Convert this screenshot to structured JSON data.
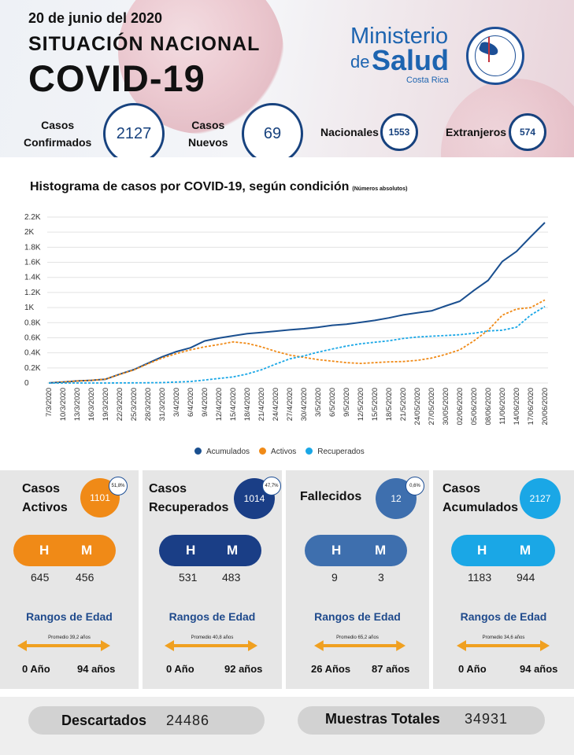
{
  "header": {
    "date": "20 de junio del 2020",
    "situacion": "SITUACIÓN NACIONAL",
    "covid": "COVID-19",
    "ministerio": "Ministerio",
    "de": "de",
    "salud": "Salud",
    "costa_rica": "Costa Rica"
  },
  "stats": {
    "confirmados_label_1": "Casos",
    "confirmados_label_2": "Confirmados",
    "confirmados_value": "2127",
    "nuevos_label_1": "Casos",
    "nuevos_label_2": "Nuevos",
    "nuevos_value": "69",
    "nacionales_label": "Nacionales",
    "nacionales_value": "1553",
    "extranjeros_label": "Extranjeros",
    "extranjeros_value": "574"
  },
  "chart_title": "Histograma de casos por COVID-19, según condición",
  "chart_subtitle": "(Números absolutos)",
  "chart_data": {
    "type": "line",
    "title": "Histograma de casos por COVID-19, según condición",
    "subtitle": "(Números absolutos)",
    "xlabel": "",
    "ylabel": "",
    "ylim": [
      0,
      2200
    ],
    "y_ticks": [
      0,
      200,
      400,
      600,
      800,
      1000,
      1200,
      1400,
      1600,
      1800,
      2000,
      2200
    ],
    "y_tick_labels": [
      "0",
      "0.2K",
      "0.4K",
      "0.6K",
      "0.8K",
      "1K",
      "1.2K",
      "1.4K",
      "1.6K",
      "1.8K",
      "2K",
      "2.2K"
    ],
    "x_tick_labels": [
      "7/3/2020",
      "10/3/2020",
      "13/3/2020",
      "16/3/2020",
      "19/3/2020",
      "22/3/2020",
      "25/3/2020",
      "28/3/2020",
      "31/3/2020",
      "3/4/2020",
      "6/4/2020",
      "9/4/2020",
      "12/4/2020",
      "15/4/2020",
      "18/4/2020",
      "21/4/2020",
      "24/4/2020",
      "27/4/2020",
      "30/4/2020",
      "3/5/2020",
      "6/5/2020",
      "9/5/2020",
      "12/5/2020",
      "15/5/2020",
      "18/5/2020",
      "21/5/2020",
      "24/05/2020",
      "27/05/2020",
      "30/05/2020",
      "02/06/2020",
      "05/06/2020",
      "08/06/2020",
      "11/06/2020",
      "14/06/2020",
      "17/06/2020",
      "20/06/2020"
    ],
    "grid": true,
    "legend": "bottom",
    "series": [
      {
        "name": "Acumulados",
        "color": "#1a4f8f",
        "style": "solid",
        "values": [
          1,
          13,
          27,
          35,
          50,
          117,
          177,
          263,
          347,
          416,
          467,
          558,
          595,
          626,
          655,
          669,
          687,
          705,
          719,
          739,
          765,
          780,
          804,
          830,
          863,
          903,
          930,
          956,
          1022,
          1084,
          1228,
          1361,
          1612,
          1744,
          1939,
          2127
        ]
      },
      {
        "name": "Activos",
        "color": "#f08a17",
        "style": "dotted",
        "values": [
          1,
          13,
          27,
          35,
          50,
          115,
          173,
          255,
          330,
          390,
          440,
          480,
          510,
          545,
          525,
          480,
          420,
          370,
          340,
          310,
          290,
          270,
          260,
          270,
          280,
          285,
          300,
          330,
          380,
          440,
          560,
          700,
          900,
          980,
          1000,
          1101
        ]
      },
      {
        "name": "Recuperados",
        "color": "#1aa7e6",
        "style": "dotted",
        "values": [
          0,
          0,
          0,
          0,
          0,
          1,
          2,
          3,
          5,
          12,
          20,
          40,
          60,
          80,
          120,
          175,
          250,
          320,
          360,
          410,
          450,
          490,
          520,
          540,
          560,
          590,
          610,
          620,
          630,
          640,
          660,
          690,
          700,
          740,
          900,
          1014
        ]
      }
    ]
  },
  "legend": {
    "acumulados": "Acumulados",
    "activos": "Activos",
    "recuperados": "Recuperados"
  },
  "panels": [
    {
      "title_1": "Casos",
      "title_2": "Activos",
      "value": "1101",
      "pct": "51,8%",
      "color": "#f08a17",
      "h_label": "H",
      "m_label": "M",
      "h": "645",
      "m": "456",
      "rango": "Rangos de Edad",
      "promedio": "Promedio 39,2 años",
      "min": "0 Año",
      "max": "94 años"
    },
    {
      "title_1": "Casos",
      "title_2": "Recuperados",
      "value": "1014",
      "pct": "47,7%",
      "color": "#1a3e86",
      "h_label": "H",
      "m_label": "M",
      "h": "531",
      "m": "483",
      "rango": "Rangos de Edad",
      "promedio": "Promedio 40,8 años",
      "min": "0 Año",
      "max": "92 años"
    },
    {
      "title_1": "Fallecidos",
      "title_2": "",
      "value": "12",
      "pct": "0,6%",
      "color": "#3e6fae",
      "h_label": "H",
      "m_label": "M",
      "h": "9",
      "m": "3",
      "rango": "Rangos de Edad",
      "promedio": "Promedio 65,2 años",
      "min": "26 Años",
      "max": "87 años"
    },
    {
      "title_1": "Casos",
      "title_2": "Acumulados",
      "value": "2127",
      "pct": "",
      "color": "#1aa7e6",
      "h_label": "H",
      "m_label": "M",
      "h": "1183",
      "m": "944",
      "rango": "Rangos de Edad",
      "promedio": "Promedio 34,6 años",
      "min": "0 Año",
      "max": "94 años"
    }
  ],
  "footer": {
    "descartados_label": "Descartados",
    "descartados_value": "24486",
    "muestras_label": "Muestras Totales",
    "muestras_value": "34931"
  },
  "colors": {
    "dark_blue": "#17427e",
    "orange": "#f08a17",
    "arrow": "#f0a020"
  }
}
